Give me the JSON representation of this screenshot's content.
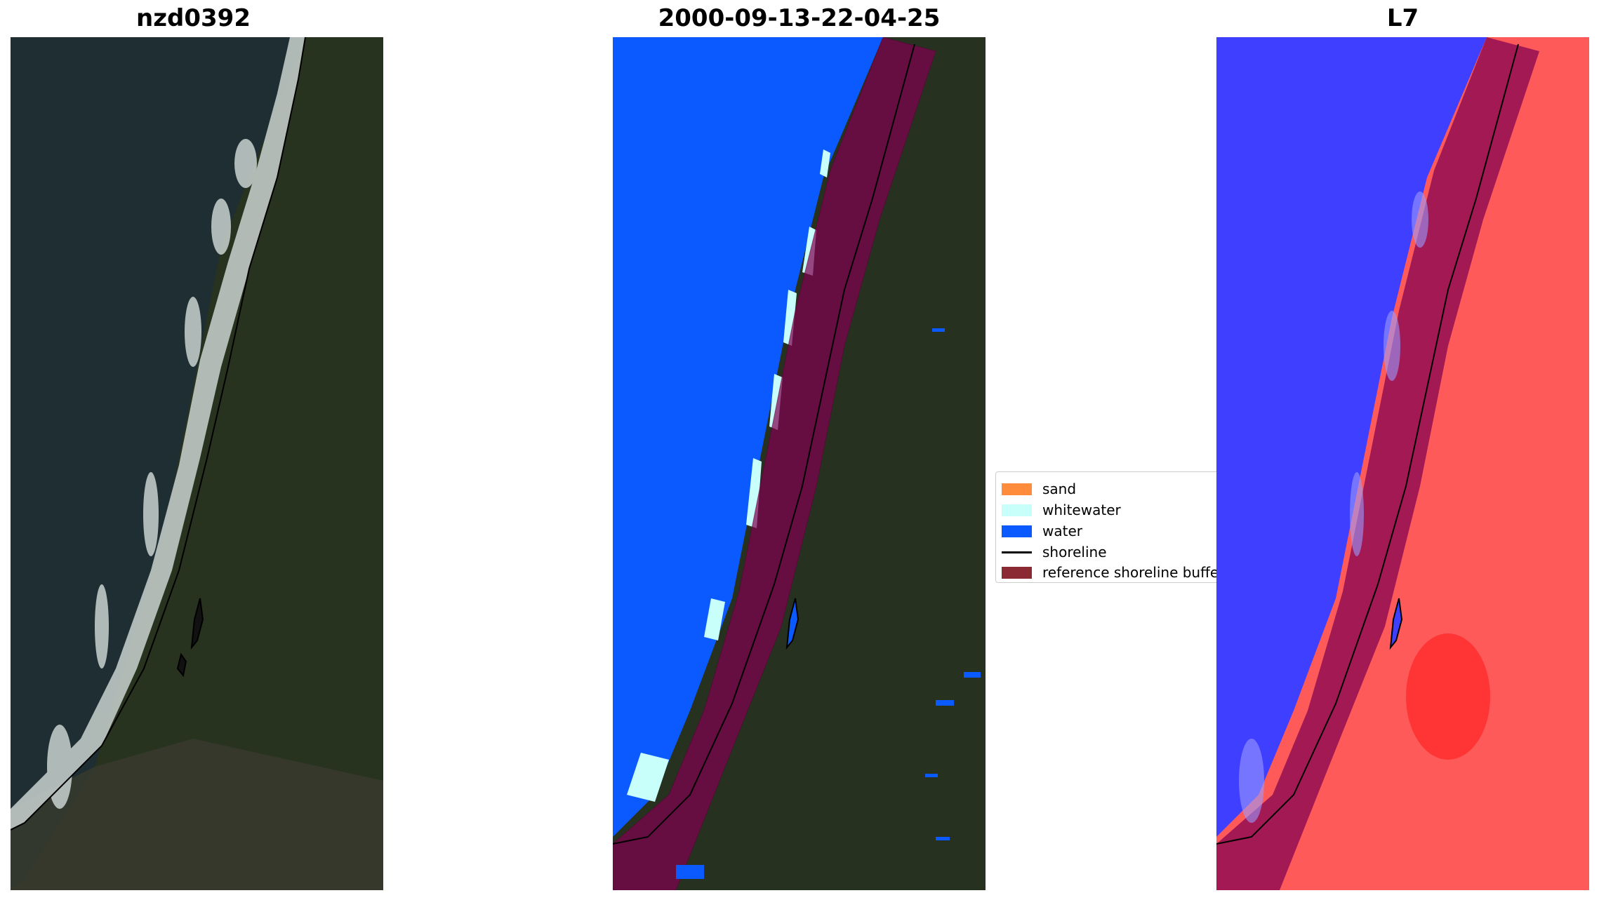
{
  "panels": [
    {
      "title": "nzd0392"
    },
    {
      "title": "2000-09-13-22-04-25"
    },
    {
      "title": "L7"
    }
  ],
  "legend": {
    "items": [
      {
        "label": "sand",
        "color": "#ff8c3c",
        "kind": "patch"
      },
      {
        "label": "whitewater",
        "color": "#c8fffa",
        "kind": "patch"
      },
      {
        "label": "water",
        "color": "#0a5aff",
        "kind": "patch"
      },
      {
        "label": "shoreline",
        "color": "#000000",
        "kind": "line"
      },
      {
        "label": "reference shoreline buffer",
        "color": "#8b2a33",
        "kind": "patch"
      }
    ]
  },
  "colors": {
    "ocean_dark": "#1f2e33",
    "forest": "#26311f",
    "water_class": "#0a5aff",
    "whitewater_class": "#c8fffa",
    "buffer": "#800050",
    "index_blue": "#3f3fff",
    "index_red": "#ff2a2a"
  }
}
